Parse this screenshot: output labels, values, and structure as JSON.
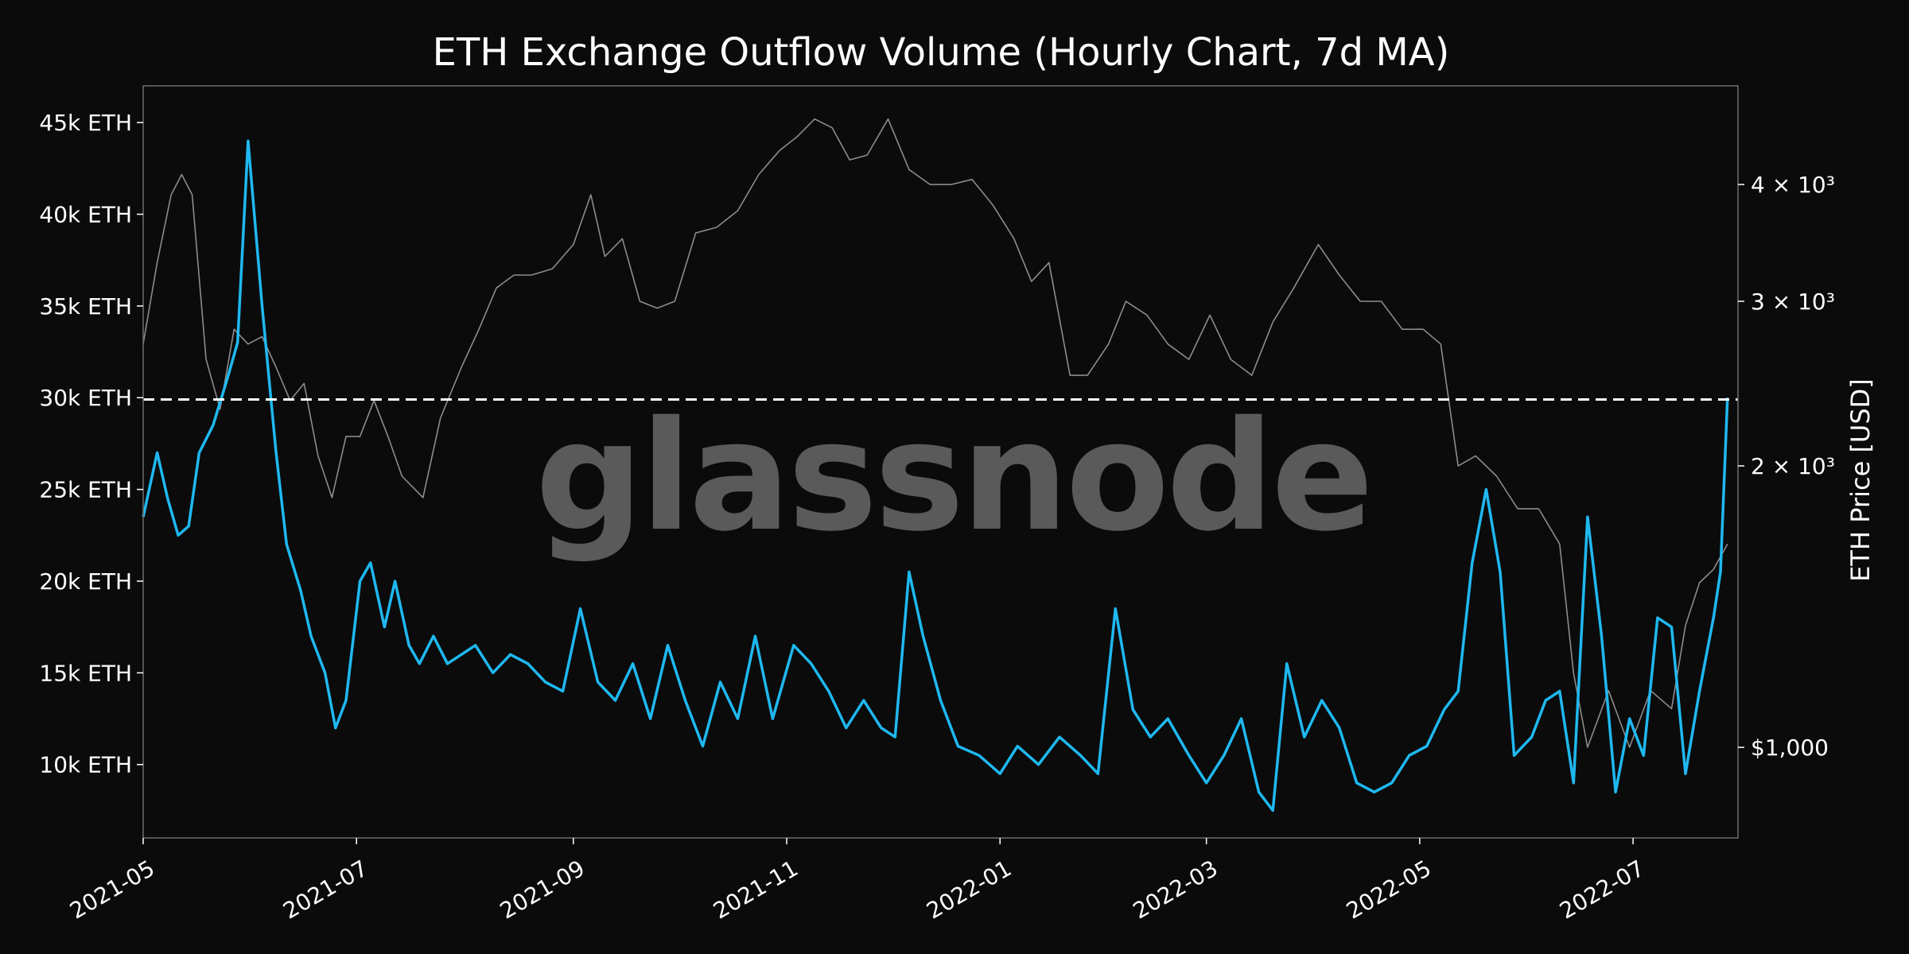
{
  "chart_data": {
    "type": "line",
    "title": "ETH Exchange Outflow Volume (Hourly Chart, 7d MA)",
    "watermark": "glassnode",
    "xlabel": "",
    "ylabel_left": "",
    "ylabel_right": "ETH Price [USD]",
    "x_range": [
      "2021-05-01",
      "2022-07-31"
    ],
    "y_left_range": [
      6000,
      47000
    ],
    "y_right_range": [
      800,
      5100
    ],
    "y_right_scale": "log",
    "x_ticks": [
      "2021-05",
      "2021-07",
      "2021-09",
      "2021-11",
      "2022-01",
      "2022-03",
      "2022-05",
      "2022-07"
    ],
    "y_left_ticks": [
      {
        "value": 10000,
        "label": "10k ETH"
      },
      {
        "value": 15000,
        "label": "15k ETH"
      },
      {
        "value": 20000,
        "label": "20k ETH"
      },
      {
        "value": 25000,
        "label": "25k ETH"
      },
      {
        "value": 30000,
        "label": "30k ETH"
      },
      {
        "value": 35000,
        "label": "35k ETH"
      },
      {
        "value": 40000,
        "label": "40k ETH"
      },
      {
        "value": 45000,
        "label": "45k ETH"
      }
    ],
    "y_right_ticks": [
      {
        "value": 1000,
        "label": "$1,000"
      },
      {
        "value": 2000,
        "label": "2 × 10³"
      },
      {
        "value": 3000,
        "label": "3 × 10³"
      },
      {
        "value": 4000,
        "label": "4 × 10³"
      }
    ],
    "reference_line": {
      "value": 29900,
      "axis": "left",
      "style": "dashed",
      "color": "#ffffff"
    },
    "grid": false,
    "colors": {
      "outflow": "#1fb8f0",
      "price": "#8c8c8c",
      "background": "#0b0b0b",
      "frame": "#6e6e6e"
    },
    "series": [
      {
        "key": "outflow",
        "axis": "left",
        "x": [
          "2021-05-01",
          "2021-05-05",
          "2021-05-08",
          "2021-05-11",
          "2021-05-14",
          "2021-05-17",
          "2021-05-21",
          "2021-05-25",
          "2021-05-28",
          "2021-05-31",
          "2021-06-04",
          "2021-06-08",
          "2021-06-11",
          "2021-06-15",
          "2021-06-18",
          "2021-06-22",
          "2021-06-25",
          "2021-06-28",
          "2021-07-02",
          "2021-07-05",
          "2021-07-09",
          "2021-07-12",
          "2021-07-16",
          "2021-07-19",
          "2021-07-23",
          "2021-07-27",
          "2021-07-31",
          "2021-08-04",
          "2021-08-09",
          "2021-08-14",
          "2021-08-19",
          "2021-08-24",
          "2021-08-29",
          "2021-09-03",
          "2021-09-08",
          "2021-09-13",
          "2021-09-18",
          "2021-09-23",
          "2021-09-28",
          "2021-10-03",
          "2021-10-08",
          "2021-10-13",
          "2021-10-18",
          "2021-10-23",
          "2021-10-28",
          "2021-11-03",
          "2021-11-08",
          "2021-11-13",
          "2021-11-18",
          "2021-11-23",
          "2021-11-28",
          "2021-12-02",
          "2021-12-06",
          "2021-12-10",
          "2021-12-15",
          "2021-12-20",
          "2021-12-26",
          "2022-01-01",
          "2022-01-06",
          "2022-01-12",
          "2022-01-18",
          "2022-01-24",
          "2022-01-29",
          "2022-02-03",
          "2022-02-08",
          "2022-02-13",
          "2022-02-18",
          "2022-02-24",
          "2022-03-01",
          "2022-03-06",
          "2022-03-11",
          "2022-03-16",
          "2022-03-20",
          "2022-03-24",
          "2022-03-29",
          "2022-04-03",
          "2022-04-08",
          "2022-04-13",
          "2022-04-18",
          "2022-04-23",
          "2022-04-28",
          "2022-05-03",
          "2022-05-08",
          "2022-05-12",
          "2022-05-16",
          "2022-05-20",
          "2022-05-24",
          "2022-05-28",
          "2022-06-02",
          "2022-06-06",
          "2022-06-10",
          "2022-06-14",
          "2022-06-18",
          "2022-06-22",
          "2022-06-26",
          "2022-06-30",
          "2022-07-04",
          "2022-07-08",
          "2022-07-12",
          "2022-07-16",
          "2022-07-20",
          "2022-07-24",
          "2022-07-26",
          "2022-07-28"
        ],
        "y": [
          23500,
          27000,
          24500,
          22500,
          23000,
          27000,
          28500,
          31000,
          33000,
          44000,
          35000,
          27000,
          22000,
          19500,
          17000,
          15000,
          12000,
          13500,
          20000,
          21000,
          17500,
          20000,
          16500,
          15500,
          17000,
          15500,
          16000,
          16500,
          15000,
          16000,
          15500,
          14500,
          14000,
          18500,
          14500,
          13500,
          15500,
          12500,
          16500,
          13500,
          11000,
          14500,
          12500,
          17000,
          12500,
          16500,
          15500,
          14000,
          12000,
          13500,
          12000,
          11500,
          20500,
          17000,
          13500,
          11000,
          10500,
          9500,
          11000,
          10000,
          11500,
          10500,
          9500,
          18500,
          13000,
          11500,
          12500,
          10500,
          9000,
          10500,
          12500,
          8500,
          7500,
          15500,
          11500,
          13500,
          12000,
          9000,
          8500,
          9000,
          10500,
          11000,
          13000,
          14000,
          21000,
          25000,
          20500,
          10500,
          11500,
          13500,
          14000,
          9000,
          23500,
          17000,
          8500,
          12500,
          10500,
          18000,
          17500,
          9500,
          14000,
          18000,
          20500,
          30000
        ]
      },
      {
        "key": "price",
        "axis": "right",
        "x": [
          "2021-05-01",
          "2021-05-05",
          "2021-05-09",
          "2021-05-12",
          "2021-05-15",
          "2021-05-19",
          "2021-05-23",
          "2021-05-27",
          "2021-05-31",
          "2021-06-04",
          "2021-06-08",
          "2021-06-12",
          "2021-06-16",
          "2021-06-20",
          "2021-06-24",
          "2021-06-28",
          "2021-07-02",
          "2021-07-06",
          "2021-07-10",
          "2021-07-14",
          "2021-07-20",
          "2021-07-25",
          "2021-07-31",
          "2021-08-05",
          "2021-08-10",
          "2021-08-15",
          "2021-08-20",
          "2021-08-26",
          "2021-09-01",
          "2021-09-06",
          "2021-09-10",
          "2021-09-15",
          "2021-09-20",
          "2021-09-25",
          "2021-09-30",
          "2021-10-06",
          "2021-10-12",
          "2021-10-18",
          "2021-10-24",
          "2021-10-30",
          "2021-11-04",
          "2021-11-09",
          "2021-11-14",
          "2021-11-19",
          "2021-11-24",
          "2021-11-30",
          "2021-12-06",
          "2021-12-12",
          "2021-12-18",
          "2021-12-24",
          "2021-12-30",
          "2022-01-05",
          "2022-01-10",
          "2022-01-15",
          "2022-01-21",
          "2022-01-26",
          "2022-02-01",
          "2022-02-06",
          "2022-02-12",
          "2022-02-18",
          "2022-02-24",
          "2022-03-02",
          "2022-03-08",
          "2022-03-14",
          "2022-03-20",
          "2022-03-26",
          "2022-04-02",
          "2022-04-08",
          "2022-04-14",
          "2022-04-20",
          "2022-04-26",
          "2022-05-02",
          "2022-05-07",
          "2022-05-12",
          "2022-05-17",
          "2022-05-23",
          "2022-05-29",
          "2022-06-04",
          "2022-06-10",
          "2022-06-14",
          "2022-06-18",
          "2022-06-24",
          "2022-06-30",
          "2022-07-06",
          "2022-07-12",
          "2022-07-16",
          "2022-07-20",
          "2022-07-24",
          "2022-07-28"
        ],
        "y": [
          2700,
          3300,
          3900,
          4100,
          3900,
          2600,
          2300,
          2800,
          2700,
          2750,
          2550,
          2350,
          2450,
          2050,
          1850,
          2150,
          2150,
          2350,
          2150,
          1950,
          1850,
          2250,
          2550,
          2800,
          3100,
          3200,
          3200,
          3250,
          3450,
          3900,
          3350,
          3500,
          3000,
          2950,
          3000,
          3550,
          3600,
          3750,
          4100,
          4350,
          4500,
          4700,
          4600,
          4250,
          4300,
          4700,
          4150,
          4000,
          4000,
          4050,
          3800,
          3500,
          3150,
          3300,
          2500,
          2500,
          2700,
          3000,
          2900,
          2700,
          2600,
          2900,
          2600,
          2500,
          2850,
          3100,
          3450,
          3200,
          3000,
          3000,
          2800,
          2800,
          2700,
          2000,
          2050,
          1950,
          1800,
          1800,
          1650,
          1200,
          1000,
          1150,
          1000,
          1150,
          1100,
          1350,
          1500,
          1550,
          1650
        ]
      }
    ]
  }
}
